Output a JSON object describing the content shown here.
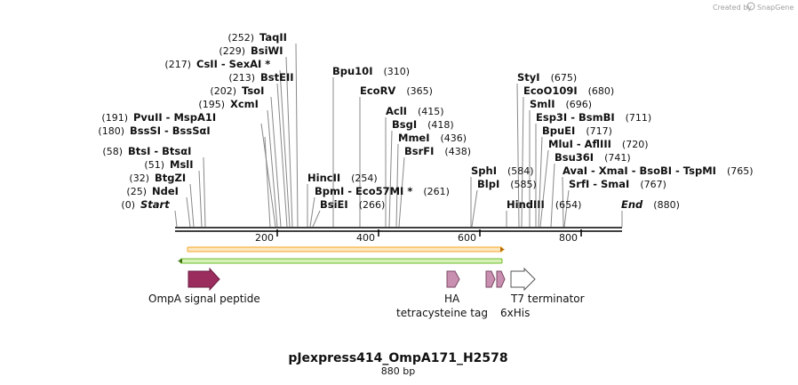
{
  "title": "pJexpress414_OmpA171_H2578",
  "length_label": "880 bp",
  "credit_text": "Created by",
  "credit_brand": "SnapGene",
  "ruler_ticks": [
    "200",
    "400",
    "600",
    "800"
  ],
  "sites": [
    {
      "names": [
        "TaqII"
      ],
      "pos": "(252)"
    },
    {
      "names": [
        "BsiWI"
      ],
      "pos": "(229)"
    },
    {
      "names": [
        "CsII",
        "SexAI *"
      ],
      "pos": "(217)"
    },
    {
      "names": [
        "BstEII"
      ],
      "pos": "(213)"
    },
    {
      "names": [
        "TsoI"
      ],
      "pos": "(202)"
    },
    {
      "names": [
        "XcmI"
      ],
      "pos": "(195)"
    },
    {
      "names": [
        "PvuII",
        "MspA1I"
      ],
      "pos": "(191)"
    },
    {
      "names": [
        "BssSI",
        "BssSαI"
      ],
      "pos": "(180)"
    },
    {
      "names": [
        "BtsI",
        "BtsαI"
      ],
      "pos": "(58)"
    },
    {
      "names": [
        "MslI"
      ],
      "pos": "(51)"
    },
    {
      "names": [
        "BtgZI"
      ],
      "pos": "(32)"
    },
    {
      "names": [
        "NdeI"
      ],
      "pos": "(25)"
    },
    {
      "names": [
        "Start"
      ],
      "pos": "(0)"
    },
    {
      "names": [
        "Bpu10I"
      ],
      "pos": "(310)"
    },
    {
      "names": [
        "EcoRV"
      ],
      "pos": "(365)"
    },
    {
      "names": [
        "AclI"
      ],
      "pos": "(415)"
    },
    {
      "names": [
        "BsgI"
      ],
      "pos": "(418)"
    },
    {
      "names": [
        "MmeI"
      ],
      "pos": "(436)"
    },
    {
      "names": [
        "BsrFI"
      ],
      "pos": "(438)"
    },
    {
      "names": [
        "HincII"
      ],
      "pos": "(254)"
    },
    {
      "names": [
        "BpmI",
        "Eco57MI *"
      ],
      "pos": "(261)"
    },
    {
      "names": [
        "BsiEI"
      ],
      "pos": "(266)"
    },
    {
      "names": [
        "SphI"
      ],
      "pos": "(584)"
    },
    {
      "names": [
        "BlpI"
      ],
      "pos": "(585)"
    },
    {
      "names": [
        "StyI"
      ],
      "pos": "(675)"
    },
    {
      "names": [
        "EcoO109I"
      ],
      "pos": "(680)"
    },
    {
      "names": [
        "SmlI"
      ],
      "pos": "(696)"
    },
    {
      "names": [
        "Esp3I",
        "BsmBI"
      ],
      "pos": "(711)"
    },
    {
      "names": [
        "BpuEI"
      ],
      "pos": "(717)"
    },
    {
      "names": [
        "MluI",
        "AflIII"
      ],
      "pos": "(720)"
    },
    {
      "names": [
        "Bsu36I"
      ],
      "pos": "(741)"
    },
    {
      "names": [
        "AvaI",
        "XmaI",
        "BsoBI",
        "TspMI"
      ],
      "pos": "(765)"
    },
    {
      "names": [
        "SrfI",
        "SmaI"
      ],
      "pos": "(767)"
    },
    {
      "names": [
        "HindIII"
      ],
      "pos": "(654)"
    },
    {
      "names": [
        "End"
      ],
      "pos": "(880)"
    }
  ],
  "features": [
    {
      "label": "OmpA signal peptide",
      "color": "#9b2c5e"
    },
    {
      "label": "HA",
      "color": "#c98fb0"
    },
    {
      "label": "tetracysteine tag",
      "color": "#c98fb0"
    },
    {
      "label": "6xHis",
      "color": "#c98fb0"
    },
    {
      "label": "T7 terminator",
      "color": "#ffffff"
    }
  ],
  "orf_colors": {
    "forward": "#f4a623",
    "reverse": "#6fbf2a"
  }
}
